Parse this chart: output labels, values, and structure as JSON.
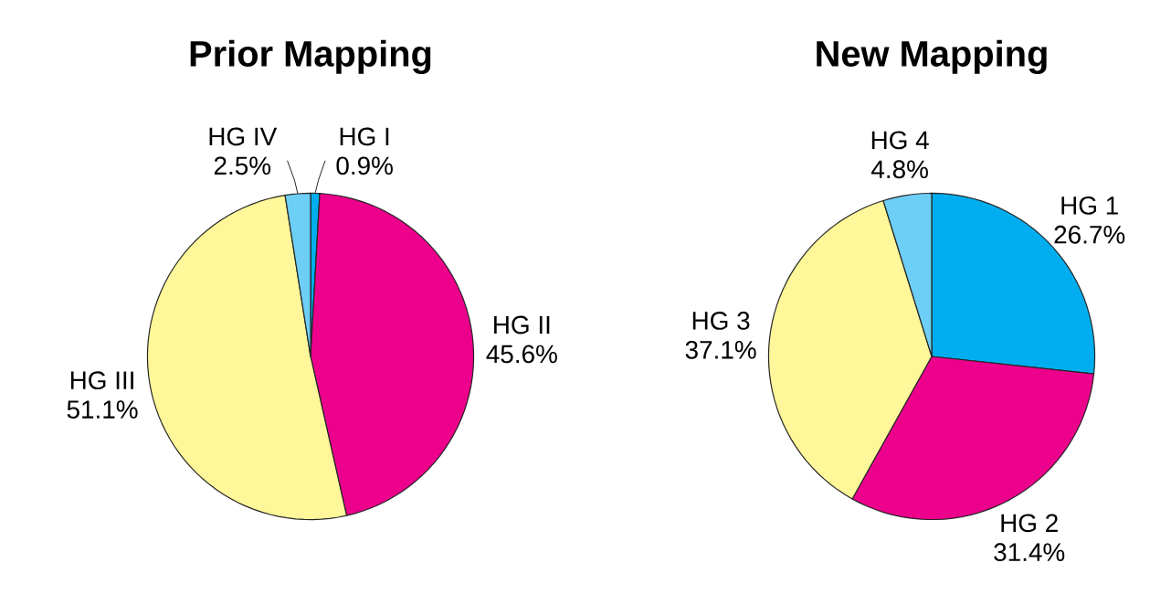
{
  "chart_data": [
    {
      "type": "pie",
      "title": "Prior Mapping",
      "categories": [
        "HG I",
        "HG II",
        "HG III",
        "HG IV"
      ],
      "values": [
        0.9,
        45.6,
        51.1,
        2.5
      ],
      "value_labels": [
        "0.9%",
        "45.6%",
        "51.1%",
        "2.5%"
      ],
      "colors": [
        "#00aeef",
        "#ec008c",
        "#fff799",
        "#6dcff6"
      ]
    },
    {
      "type": "pie",
      "title": "New Mapping",
      "categories": [
        "HG 1",
        "HG 2",
        "HG 3",
        "HG 4"
      ],
      "values": [
        26.7,
        31.4,
        37.1,
        4.8
      ],
      "value_labels": [
        "26.7%",
        "31.4%",
        "37.1%",
        "4.8%"
      ],
      "colors": [
        "#00aeef",
        "#ec008c",
        "#fff799",
        "#6dcff6"
      ]
    }
  ]
}
